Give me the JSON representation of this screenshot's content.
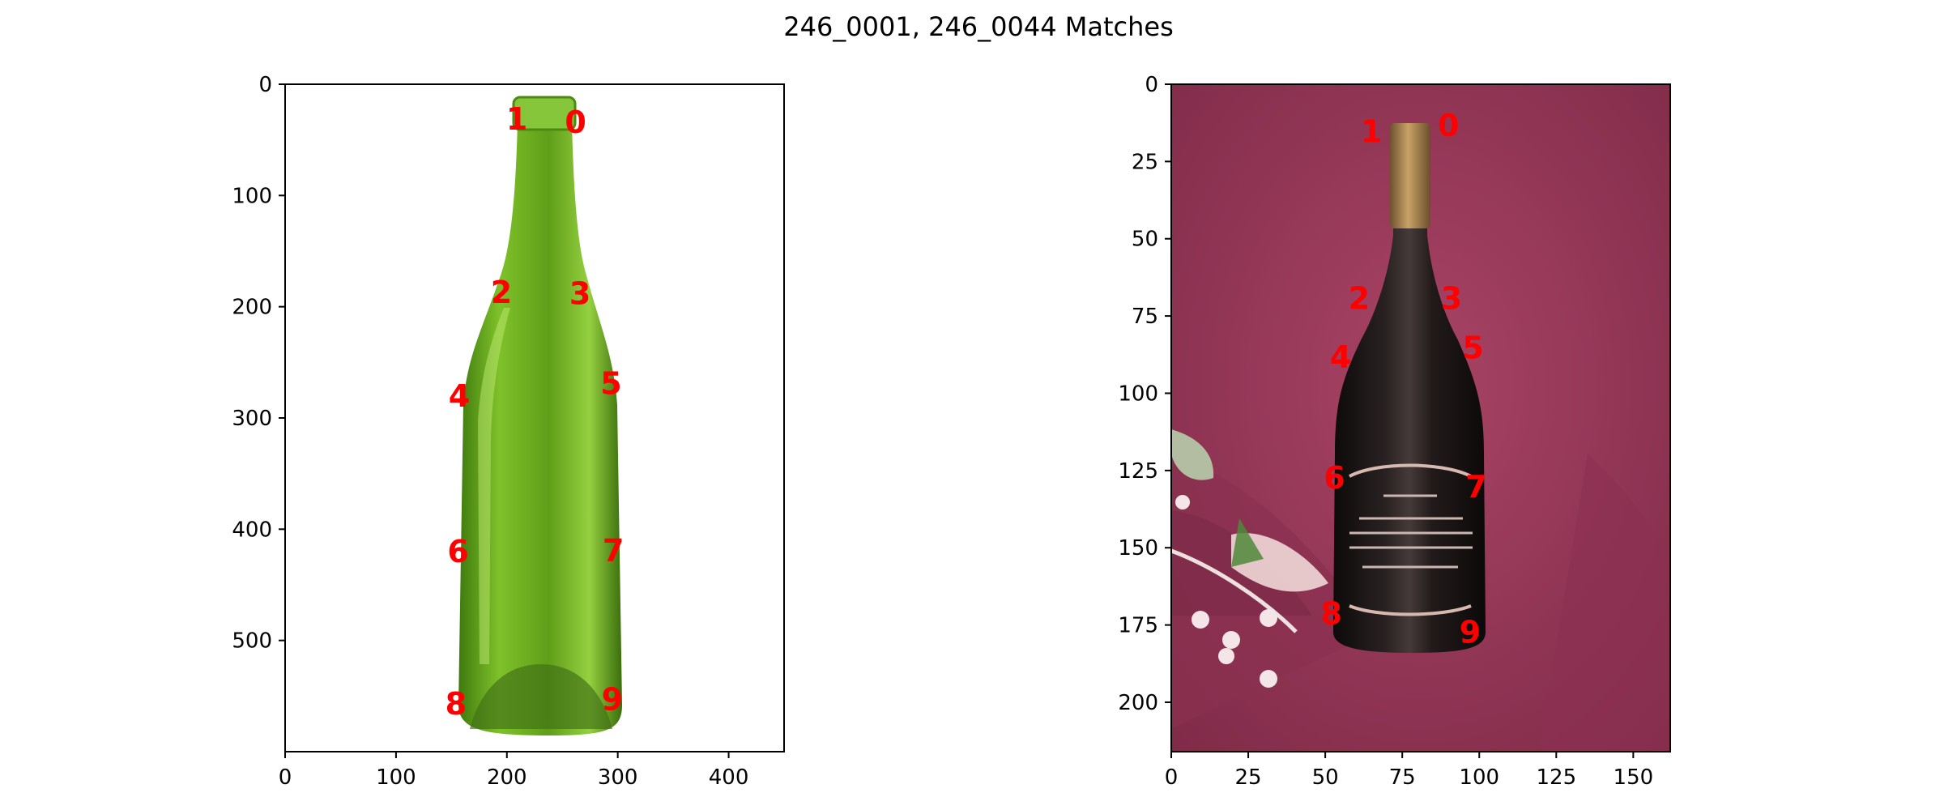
{
  "title": "246_0001, 246_0044 Matches",
  "colors": {
    "keypoint": "#ff0000",
    "left_bottle": "#6cae1c",
    "left_background": "#ffffff",
    "right_bottle": "#1a1414",
    "right_background": "#9c3a5c",
    "right_cap": "#a8824a"
  },
  "chart_data": [
    {
      "type": "scatter",
      "image": "green wine bottle on white background",
      "xlim": [
        0,
        450
      ],
      "ylim": [
        600,
        0
      ],
      "xticks": [
        0,
        100,
        200,
        300,
        400
      ],
      "yticks": [
        0,
        100,
        200,
        300,
        400,
        500
      ],
      "grid": false,
      "points": [
        {
          "label": "0",
          "x": 262,
          "y": 36
        },
        {
          "label": "1",
          "x": 209,
          "y": 33
        },
        {
          "label": "2",
          "x": 195,
          "y": 189
        },
        {
          "label": "3",
          "x": 266,
          "y": 190
        },
        {
          "label": "4",
          "x": 157,
          "y": 282
        },
        {
          "label": "5",
          "x": 294,
          "y": 271
        },
        {
          "label": "6",
          "x": 156,
          "y": 422
        },
        {
          "label": "7",
          "x": 296,
          "y": 421
        },
        {
          "label": "8",
          "x": 154,
          "y": 559
        },
        {
          "label": "9",
          "x": 295,
          "y": 555
        }
      ]
    },
    {
      "type": "scatter",
      "image": "dark engraved wine bottle on maroon cloth",
      "xlim": [
        0,
        162
      ],
      "ylim": [
        216,
        0
      ],
      "xticks": [
        0,
        25,
        50,
        75,
        100,
        125,
        150
      ],
      "yticks": [
        0,
        25,
        50,
        75,
        100,
        125,
        150,
        175,
        200
      ],
      "grid": false,
      "points": [
        {
          "label": "0",
          "x": 90,
          "y": 14
        },
        {
          "label": "1",
          "x": 65,
          "y": 16
        },
        {
          "label": "2",
          "x": 61,
          "y": 70
        },
        {
          "label": "3",
          "x": 91,
          "y": 70
        },
        {
          "label": "4",
          "x": 55,
          "y": 89
        },
        {
          "label": "5",
          "x": 98,
          "y": 86
        },
        {
          "label": "6",
          "x": 53,
          "y": 128
        },
        {
          "label": "7",
          "x": 99,
          "y": 131
        },
        {
          "label": "8",
          "x": 52,
          "y": 172
        },
        {
          "label": "9",
          "x": 97,
          "y": 178
        }
      ]
    }
  ]
}
